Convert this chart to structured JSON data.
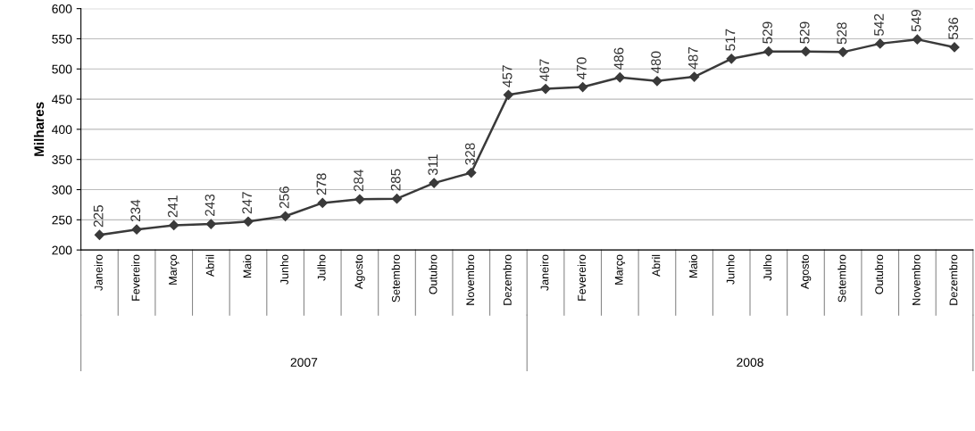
{
  "chart_data": {
    "type": "line",
    "ylabel": "Milhares",
    "categories": [
      "Janeiro",
      "Fevereiro",
      "Março",
      "Abril",
      "Maio",
      "Junho",
      "Julho",
      "Agosto",
      "Setembro",
      "Outubro",
      "Novembro",
      "Dezembro",
      "Janeiro",
      "Fevereiro",
      "Março",
      "Abril",
      "Maio",
      "Junho",
      "Julho",
      "Agosto",
      "Setembro",
      "Outubro",
      "Novembro",
      "Dezembro"
    ],
    "series": [
      {
        "color": "#3a3a3a",
        "values": [
          225,
          234,
          241,
          243,
          247,
          256,
          278,
          284,
          285,
          311,
          328,
          457,
          467,
          470,
          486,
          480,
          487,
          517,
          529,
          529,
          528,
          542,
          549,
          536
        ]
      }
    ],
    "ylim": [
      200,
      600
    ],
    "yticks": [
      200,
      250,
      300,
      350,
      400,
      450,
      500,
      550,
      600
    ],
    "grid": "y",
    "marker": "diamond",
    "line_style": "solid",
    "data_labels": true,
    "annotations": [
      "2007",
      "2008"
    ]
  }
}
